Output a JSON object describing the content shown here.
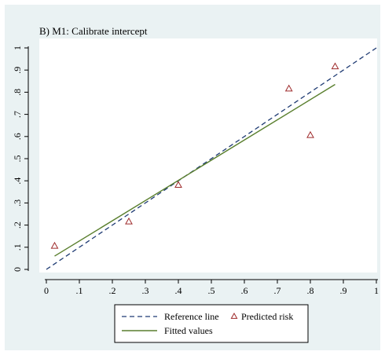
{
  "chart_data": {
    "type": "scatter",
    "title": "B) M1: Calibrate intercept",
    "xlabel": "",
    "ylabel": "",
    "xlim": [
      0,
      1
    ],
    "ylim": [
      0,
      1
    ],
    "x_ticks": [
      0,
      0.1,
      0.2,
      0.3,
      0.4,
      0.5,
      0.6,
      0.7,
      0.8,
      0.9,
      1
    ],
    "x_tick_labels": [
      "0",
      ".1",
      ".2",
      ".3",
      ".4",
      ".5",
      ".6",
      ".7",
      ".8",
      ".9",
      "1"
    ],
    "y_ticks": [
      0,
      0.1,
      0.2,
      0.3,
      0.4,
      0.5,
      0.6,
      0.7,
      0.8,
      0.9,
      1
    ],
    "y_tick_labels": [
      "0",
      ".1",
      ".2",
      ".3",
      ".4",
      ".5",
      ".6",
      ".7",
      ".8",
      ".9",
      "1"
    ],
    "grid": false,
    "legend_position": "bottom",
    "series": [
      {
        "name": "Reference line",
        "kind": "line",
        "style": "dashed",
        "color": "#1f3b73",
        "x": [
          0,
          1
        ],
        "y": [
          0,
          1
        ]
      },
      {
        "name": "Predicted risk",
        "kind": "scatter",
        "marker": "triangle-open",
        "color": "#9e2a2b",
        "x": [
          0.025,
          0.25,
          0.4,
          0.735,
          0.8,
          0.875
        ],
        "y": [
          0.105,
          0.215,
          0.38,
          0.815,
          0.605,
          0.915
        ]
      },
      {
        "name": "Fitted values",
        "kind": "line",
        "style": "solid",
        "color": "#5a7f2e",
        "x": [
          0.025,
          0.875
        ],
        "y": [
          0.06,
          0.835
        ]
      }
    ],
    "legend": [
      {
        "label": "Reference line",
        "series": 0
      },
      {
        "label": "Predicted risk",
        "series": 1
      },
      {
        "label": "Fitted values",
        "series": 2
      }
    ]
  },
  "colors": {
    "figure_background": "#eaf2f3",
    "plot_background": "#ffffff",
    "axis": "#000000"
  }
}
